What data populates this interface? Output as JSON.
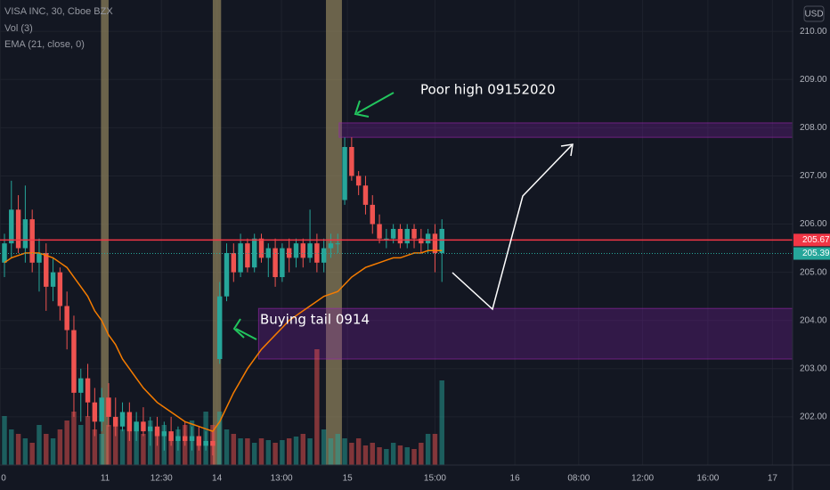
{
  "chart_data": {
    "type": "candlestick",
    "title": "VISA INC, 30, Cboe BZX",
    "legend_lines": [
      "Vol (3)",
      "EMA (21, close, 0)"
    ],
    "currency": "USD",
    "annotations": [
      "Poor high 09152020",
      "Buying tail 0914"
    ],
    "up_color": "#26a69a",
    "down_color": "#ef5350",
    "ema_color": "#f57c00",
    "open": [
      205.2,
      205.6,
      206.3,
      205.5,
      206.1,
      205.2,
      205.4,
      204.7,
      205.0,
      204.3,
      203.8,
      202.5,
      202.8,
      202.3,
      201.9,
      202.4,
      202.0,
      201.8,
      202.1,
      201.7,
      201.9,
      201.7,
      201.8,
      201.6,
      201.7,
      201.5,
      201.6,
      201.5,
      201.6,
      201.4,
      201.5,
      203.2,
      204.5,
      205.4,
      205.0,
      205.6,
      205.1,
      205.7,
      205.3,
      205.5,
      204.9,
      205.5,
      205.3,
      205.6,
      205.3,
      205.6,
      205.2,
      205.5,
      205.6,
      206.5,
      207.6,
      207.0,
      206.8,
      206.4,
      206.0,
      205.7,
      205.7,
      205.9,
      205.6,
      205.9,
      205.7,
      205.6,
      205.8,
      205.4
    ],
    "high": [
      205.8,
      206.9,
      206.6,
      206.8,
      206.3,
      205.7,
      205.6,
      205.3,
      205.1,
      204.6,
      204.1,
      203.0,
      203.1,
      202.6,
      202.6,
      202.7,
      202.4,
      202.3,
      202.3,
      202.1,
      202.2,
      202.0,
      202.0,
      201.9,
      202.0,
      201.8,
      201.9,
      201.8,
      201.8,
      201.7,
      201.7,
      204.8,
      205.6,
      205.6,
      205.8,
      205.7,
      205.8,
      205.8,
      205.6,
      205.7,
      205.6,
      205.7,
      205.7,
      205.7,
      206.3,
      205.8,
      205.7,
      205.8,
      205.8,
      207.8,
      207.8,
      207.1,
      207.0,
      206.6,
      206.2,
      205.9,
      206.0,
      206.0,
      206.0,
      206.0,
      205.9,
      205.9,
      206.0,
      206.1
    ],
    "low": [
      204.9,
      205.3,
      205.4,
      205.2,
      205.0,
      204.6,
      204.2,
      204.4,
      204.0,
      203.4,
      202.0,
      201.9,
      202.0,
      201.6,
      201.7,
      201.8,
      201.6,
      201.7,
      201.5,
      201.5,
      201.6,
      201.4,
      201.4,
      201.3,
      201.4,
      201.3,
      201.4,
      201.3,
      201.3,
      201.3,
      201.2,
      203.1,
      204.4,
      204.8,
      204.9,
      205.0,
      205.0,
      205.2,
      204.9,
      204.7,
      204.8,
      205.0,
      205.1,
      205.1,
      205.2,
      205.0,
      205.0,
      205.3,
      205.4,
      206.4,
      206.9,
      206.6,
      206.2,
      205.8,
      205.6,
      205.5,
      205.6,
      205.5,
      205.5,
      205.5,
      205.4,
      205.4,
      205.0,
      204.8
    ],
    "close": [
      205.6,
      206.3,
      205.5,
      206.1,
      205.2,
      205.4,
      204.7,
      205.0,
      204.3,
      203.8,
      202.5,
      202.8,
      202.3,
      201.9,
      202.4,
      202.0,
      201.8,
      202.1,
      201.7,
      201.9,
      201.7,
      201.8,
      201.6,
      201.7,
      201.5,
      201.6,
      201.5,
      201.6,
      201.4,
      201.5,
      201.4,
      204.5,
      205.4,
      205.0,
      205.6,
      205.1,
      205.7,
      205.3,
      205.5,
      204.9,
      205.5,
      205.3,
      205.6,
      205.3,
      205.6,
      205.2,
      205.5,
      205.6,
      205.6,
      207.6,
      207.0,
      206.8,
      206.4,
      206.0,
      205.7,
      205.7,
      205.9,
      205.6,
      205.9,
      205.7,
      205.6,
      205.8,
      205.4,
      205.9
    ],
    "volume": [
      55,
      40,
      35,
      30,
      25,
      45,
      35,
      30,
      40,
      50,
      60,
      45,
      55,
      40,
      35,
      45,
      50,
      40,
      55,
      45,
      35,
      50,
      40,
      45,
      35,
      40,
      45,
      50,
      30,
      60,
      45,
      60,
      40,
      35,
      30,
      30,
      25,
      30,
      28,
      25,
      28,
      30,
      32,
      35,
      30,
      130,
      40,
      30,
      35,
      30,
      25,
      30,
      22,
      25,
      20,
      18,
      25,
      22,
      20,
      18,
      25,
      35,
      35,
      95
    ],
    "vlim": [
      0,
      250
    ],
    "ema": [
      205.2,
      205.3,
      205.35,
      205.4,
      205.4,
      205.4,
      205.35,
      205.3,
      205.2,
      205.1,
      204.9,
      204.7,
      204.5,
      204.2,
      204.0,
      203.7,
      203.5,
      203.2,
      203.0,
      202.8,
      202.6,
      202.45,
      202.3,
      202.2,
      202.1,
      202.0,
      201.9,
      201.85,
      201.8,
      201.75,
      201.7,
      201.9,
      202.2,
      202.5,
      202.75,
      203.0,
      203.2,
      203.4,
      203.55,
      203.7,
      203.85,
      204.0,
      204.1,
      204.2,
      204.3,
      204.4,
      204.5,
      204.55,
      204.6,
      204.75,
      204.9,
      205.0,
      205.1,
      205.15,
      205.2,
      205.25,
      205.3,
      205.3,
      205.35,
      205.4,
      205.4,
      205.45,
      205.45,
      205.45
    ],
    "ylim": [
      201.0,
      210.65
    ],
    "yticks": [
      {
        "value": 202,
        "label": "202.00"
      },
      {
        "value": 203,
        "label": "203.00"
      },
      {
        "value": 204,
        "label": "204.00"
      },
      {
        "value": 205,
        "label": "205.00"
      },
      {
        "value": 206,
        "label": "206.00"
      },
      {
        "value": 207,
        "label": "207.00"
      },
      {
        "value": 208,
        "label": "208.00"
      },
      {
        "value": 209,
        "label": "209.00"
      },
      {
        "value": 210,
        "label": "210.00"
      }
    ],
    "xlim": [
      -0.64,
      113.5
    ],
    "xticks": [
      {
        "value": -0.6,
        "label": "0"
      },
      {
        "value": 14.5,
        "label": "11"
      },
      {
        "value": 22.6,
        "label": "12:30"
      },
      {
        "value": 30.6,
        "label": "14"
      },
      {
        "value": 39.9,
        "label": "13:00"
      },
      {
        "value": 49.4,
        "label": "15"
      },
      {
        "value": 62,
        "label": "15:00"
      },
      {
        "value": 73.5,
        "label": "16"
      },
      {
        "value": 82.7,
        "label": "08:00"
      },
      {
        "value": 91.9,
        "label": "12:00"
      },
      {
        "value": 101.3,
        "label": "16:00"
      },
      {
        "value": 110.6,
        "label": "17"
      }
    ],
    "highlights": [
      [
        13.9,
        15.0
      ],
      [
        30.0,
        31.2
      ],
      [
        46.3,
        48.6
      ]
    ],
    "zones": [
      {
        "top": 208.1,
        "bottom": 207.8,
        "start": 48.2
      },
      {
        "top": 204.25,
        "bottom": 203.2,
        "start": 36.6
      }
    ],
    "price_lines": [
      {
        "value": 205.67,
        "color": "#f23645"
      },
      {
        "value": 205.39,
        "color": "#26a69a"
      }
    ]
  }
}
